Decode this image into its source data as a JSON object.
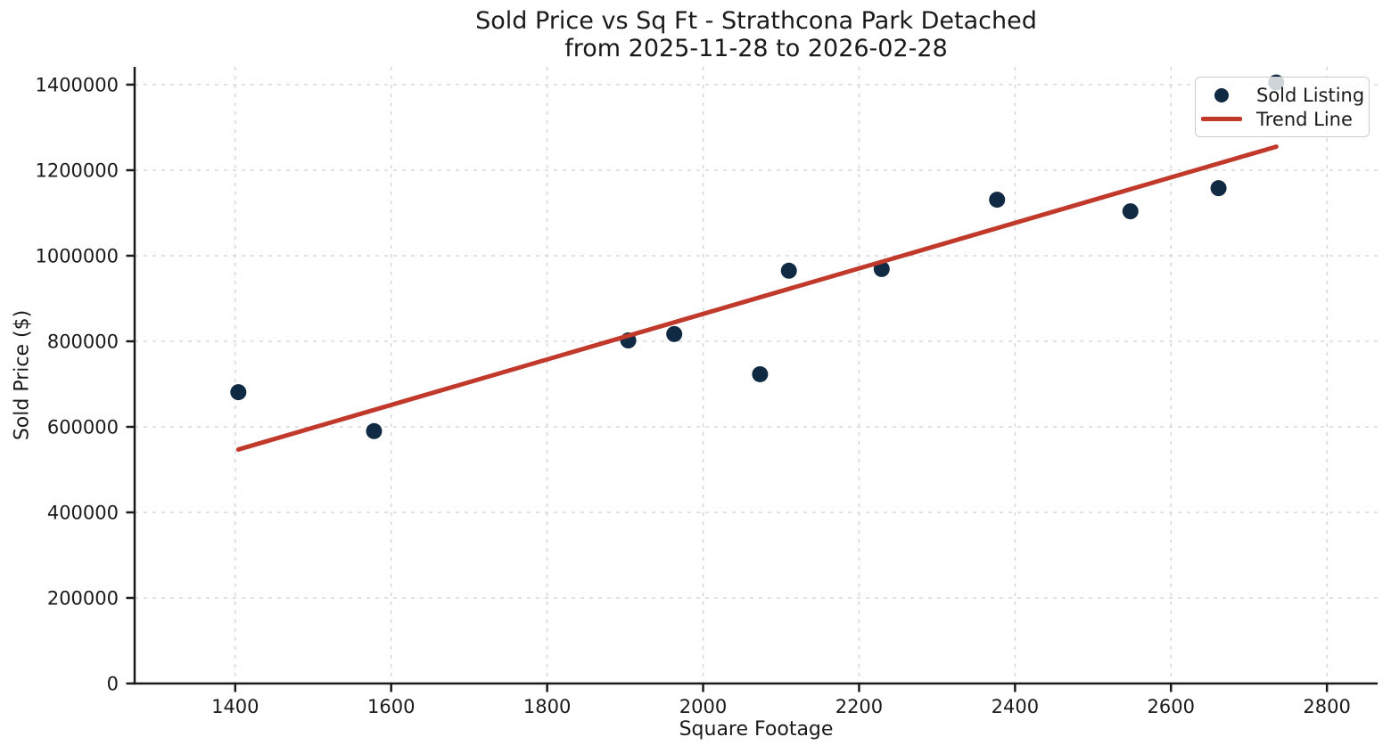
{
  "chart_data": {
    "type": "scatter",
    "title": "Sold Price vs Sq Ft - Strathcona Park Detached",
    "subtitle": "from 2025-11-28 to 2026-02-28",
    "xlabel": "Square Footage",
    "ylabel": "Sold Price ($)",
    "xlim": [
      1271,
      2865
    ],
    "ylim": [
      0,
      1441667
    ],
    "x_ticks": [
      1400,
      1600,
      1800,
      2000,
      2200,
      2400,
      2600,
      2800
    ],
    "y_ticks": [
      0,
      200000,
      400000,
      600000,
      800000,
      1000000,
      1200000,
      1400000
    ],
    "grid": true,
    "legend_position": "upper right",
    "series": [
      {
        "name": "Sold Listing",
        "type": "scatter",
        "color": "#102a43",
        "points": [
          [
            1404,
            681000
          ],
          [
            1578,
            590000
          ],
          [
            1904,
            802000
          ],
          [
            1963,
            817000
          ],
          [
            2073,
            723000
          ],
          [
            2110,
            965000
          ],
          [
            2229,
            969000
          ],
          [
            2377,
            1131000
          ],
          [
            2548,
            1104000
          ],
          [
            2661,
            1158000
          ],
          [
            2735,
            1405000
          ]
        ]
      },
      {
        "name": "Trend Line",
        "type": "line",
        "color": "#c0392b",
        "points": [
          [
            1404,
            547000
          ],
          [
            2735,
            1255000
          ]
        ]
      }
    ]
  },
  "style": {
    "grid_color": "#d9d9d9",
    "axis_color": "#1a1a1a",
    "text_color": "#1a1a1a",
    "background": "#ffffff",
    "legend_border": "#cccccc"
  }
}
